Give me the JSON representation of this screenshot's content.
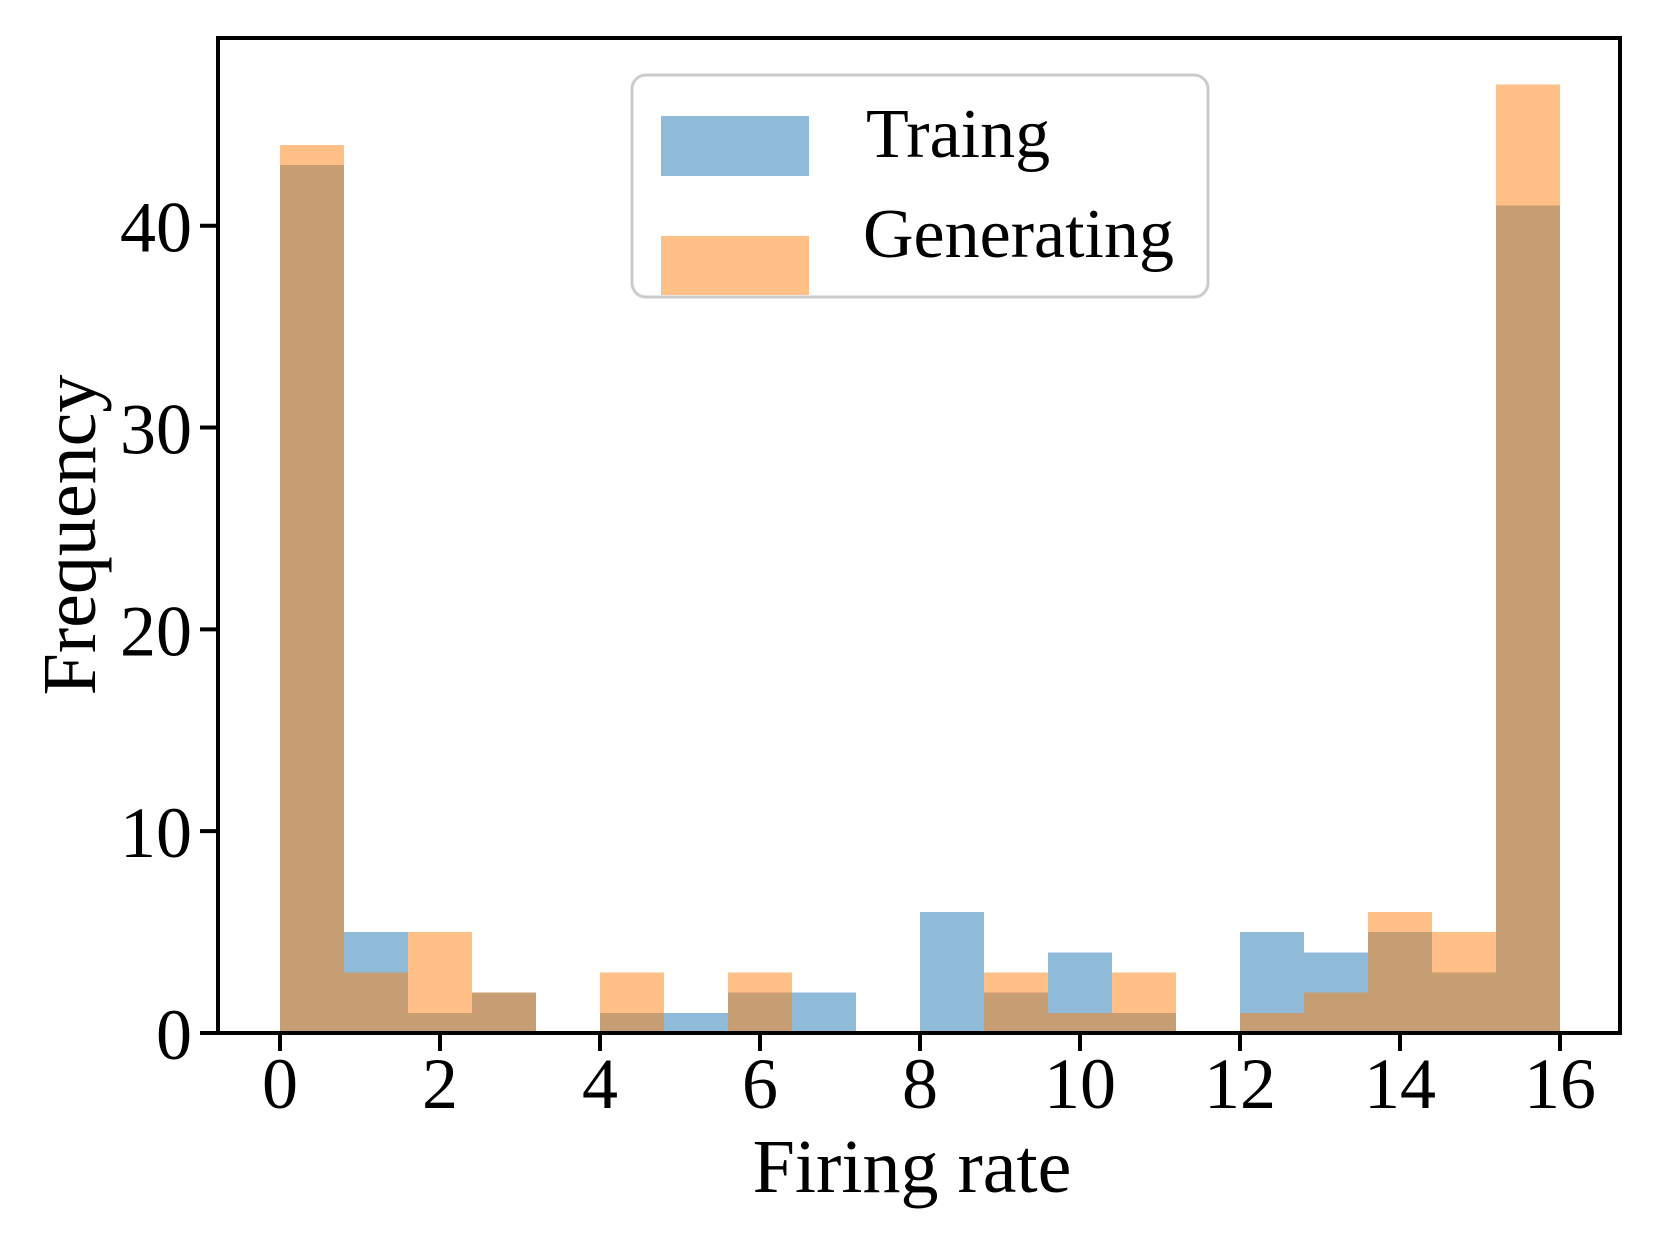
{
  "chart_data": {
    "type": "bar",
    "subtype": "histogram",
    "title": "",
    "xlabel": "Firing rate",
    "ylabel": "Frequency",
    "bin_edges": [
      0,
      0.8,
      1.6,
      2.4,
      3.2,
      4.0,
      4.8,
      5.6,
      6.4,
      7.2,
      8.0,
      8.8,
      9.6,
      10.4,
      11.2,
      12.0,
      12.8,
      13.6,
      14.4,
      15.2,
      16.0
    ],
    "series": [
      {
        "name": "Traing",
        "color": "#1f77b4",
        "values": [
          43,
          5,
          1,
          2,
          0,
          1,
          1,
          2,
          2,
          0,
          6,
          2,
          4,
          1,
          0,
          5,
          4,
          5,
          3,
          41
        ]
      },
      {
        "name": "Generating",
        "color": "#ff7f0e",
        "values": [
          44,
          3,
          5,
          2,
          0,
          3,
          0,
          3,
          0,
          0,
          0,
          3,
          1,
          3,
          0,
          1,
          2,
          6,
          5,
          47
        ]
      }
    ],
    "alpha": 0.5,
    "x_ticks": [
      0,
      2,
      4,
      6,
      8,
      10,
      12,
      14,
      16
    ],
    "y_ticks": [
      0,
      10,
      20,
      30,
      40
    ],
    "xlim": [
      -0.75,
      16.75
    ],
    "ylim": [
      0,
      49.3
    ],
    "grid": false,
    "legend_position": "upper center",
    "spine_color": "#000000",
    "legend_border_color": "#cbcbcb"
  }
}
